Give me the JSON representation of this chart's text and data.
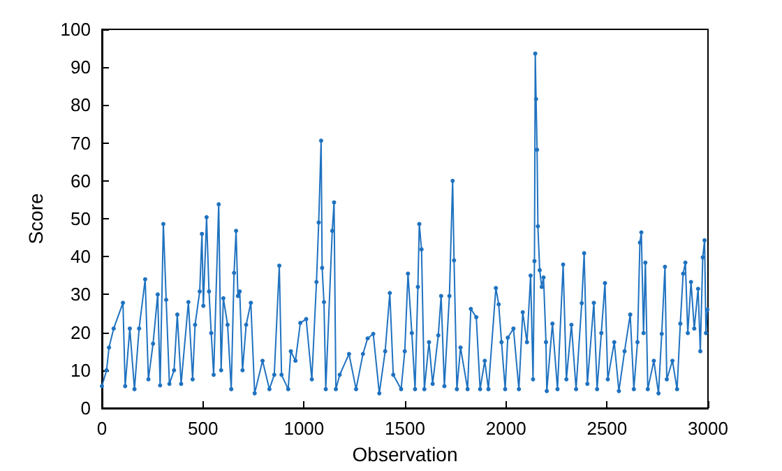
{
  "chart_data": {
    "type": "line",
    "xlabel": "Observation",
    "ylabel": "Score",
    "xlim": [
      0,
      3000
    ],
    "ylim": [
      0,
      100
    ],
    "xticks": [
      0,
      500,
      1000,
      1500,
      2000,
      2500,
      3000
    ],
    "yticks": [
      0,
      10,
      20,
      30,
      40,
      50,
      60,
      70,
      80,
      90,
      100
    ],
    "grid": false,
    "marker": "circle",
    "line_style": "solid",
    "series": [
      {
        "color": "#1f72c0",
        "x": [
          0,
          23,
          35,
          58,
          104,
          115,
          138,
          161,
          184,
          214,
          230,
          253,
          276,
          288,
          304,
          318,
          334,
          357,
          373,
          392,
          428,
          449,
          461,
          484,
          495,
          502,
          518,
          530,
          541,
          553,
          578,
          590,
          601,
          622,
          640,
          654,
          664,
          673,
          682,
          696,
          714,
          737,
          756,
          795,
          829,
          853,
          878,
          889,
          922,
          935,
          958,
          982,
          1011,
          1039,
          1062,
          1073,
          1085,
          1090,
          1099,
          1108,
          1140,
          1149,
          1158,
          1177,
          1223,
          1258,
          1292,
          1315,
          1343,
          1373,
          1402,
          1425,
          1442,
          1481,
          1499,
          1515,
          1534,
          1550,
          1564,
          1571,
          1582,
          1596,
          1619,
          1637,
          1665,
          1679,
          1695,
          1720,
          1736,
          1743,
          1757,
          1775,
          1810,
          1826,
          1853,
          1872,
          1895,
          1913,
          1950,
          1964,
          1978,
          1996,
          2009,
          2037,
          2064,
          2083,
          2104,
          2122,
          2134,
          2141,
          2145,
          2149,
          2154,
          2158,
          2167,
          2177,
          2186,
          2198,
          2202,
          2230,
          2255,
          2283,
          2299,
          2324,
          2347,
          2375,
          2387,
          2403,
          2435,
          2451,
          2472,
          2490,
          2504,
          2536,
          2559,
          2587,
          2615,
          2633,
          2651,
          2663,
          2670,
          2681,
          2690,
          2702,
          2732,
          2755,
          2771,
          2787,
          2796,
          2824,
          2847,
          2863,
          2877,
          2888,
          2900,
          2916,
          2932,
          2951,
          2962,
          2974,
          2983,
          2990,
          2997
        ],
        "values": [
          5.8,
          10,
          16,
          21,
          27.8,
          5.8,
          21,
          5,
          21,
          34,
          7.6,
          17,
          30,
          6,
          48.6,
          28.6,
          6.4,
          10,
          24.7,
          6.4,
          28,
          7.6,
          22,
          30.8,
          46,
          27,
          50.4,
          30.8,
          19.8,
          8.8,
          53.8,
          10,
          29,
          22,
          5,
          35.7,
          46.8,
          29.6,
          30.8,
          10,
          22,
          27.8,
          3.9,
          12.5,
          5,
          8.8,
          37.6,
          8.8,
          5,
          15,
          12.5,
          22.5,
          23.5,
          7.6,
          33.3,
          49,
          70.6,
          37,
          28,
          5,
          46.8,
          54.3,
          5,
          8.8,
          14.3,
          5,
          14.3,
          18.4,
          19.6,
          3.9,
          15,
          30.4,
          8.8,
          5,
          15,
          35.5,
          19.8,
          5,
          32,
          48.6,
          41.9,
          5,
          17.4,
          6.4,
          19.2,
          29.6,
          5.8,
          29.6,
          60,
          39,
          5,
          16,
          5,
          26.2,
          24,
          5,
          12.5,
          5,
          31.7,
          27.4,
          17.4,
          5,
          18.6,
          21,
          5,
          25.3,
          17.4,
          35,
          7.6,
          38.8,
          93.6,
          81.6,
          68.2,
          48,
          36.4,
          32,
          34.5,
          17.4,
          4.5,
          22.3,
          5,
          37.9,
          7.6,
          22,
          5,
          27.7,
          40.9,
          6.4,
          27.8,
          5,
          19.8,
          33,
          7.6,
          17.4,
          4.5,
          15,
          24.7,
          5,
          17.4,
          43.7,
          46.4,
          19.8,
          38.4,
          5,
          12.5,
          3.9,
          19.6,
          37.3,
          7.6,
          12.5,
          5,
          22.3,
          35.5,
          38.4,
          19.8,
          33.3,
          21,
          31.5,
          15,
          39.8,
          44.3,
          19.8,
          26
        ]
      }
    ]
  }
}
